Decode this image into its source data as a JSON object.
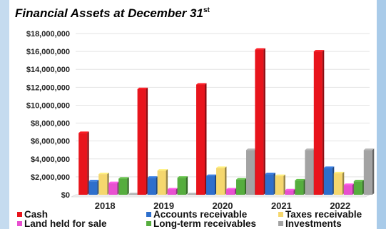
{
  "chart_data": {
    "type": "bar",
    "title": "Financial Assets at December 31",
    "title_suffix": "st",
    "xlabel": "",
    "ylabel": "",
    "categories": [
      "2018",
      "2019",
      "2020",
      "2021",
      "2022"
    ],
    "ylim": [
      0,
      18000000
    ],
    "yticks": [
      0,
      2000000,
      4000000,
      6000000,
      8000000,
      10000000,
      12000000,
      14000000,
      16000000,
      18000000
    ],
    "ytick_labels": [
      "$0",
      "$2,000,000",
      "$4,000,000",
      "$6,000,000",
      "$8,000,000",
      "$10,000,000",
      "$12,000,000",
      "$14,000,000",
      "$16,000,000",
      "$18,000,000"
    ],
    "grid": true,
    "legend_position": "bottom",
    "series": [
      {
        "name": "Cash",
        "color": "#e8141c",
        "values": [
          6900000,
          11800000,
          12300000,
          16200000,
          16000000
        ]
      },
      {
        "name": "Accounts receivable",
        "color": "#2e6fcc",
        "values": [
          1500000,
          1900000,
          2100000,
          2300000,
          3000000
        ]
      },
      {
        "name": "Taxes receivable",
        "color": "#f5d76e",
        "values": [
          2300000,
          2700000,
          3000000,
          2100000,
          2400000
        ]
      },
      {
        "name": "Land held for sale",
        "color": "#e84fd0",
        "values": [
          1300000,
          600000,
          600000,
          500000,
          1100000
        ]
      },
      {
        "name": "Long-term receivables",
        "color": "#56ad3e",
        "values": [
          1800000,
          1900000,
          1700000,
          1600000,
          1500000
        ]
      },
      {
        "name": "Investments",
        "color": "#a3a3a3",
        "values": [
          0,
          0,
          5000000,
          5000000,
          5000000
        ]
      }
    ]
  }
}
